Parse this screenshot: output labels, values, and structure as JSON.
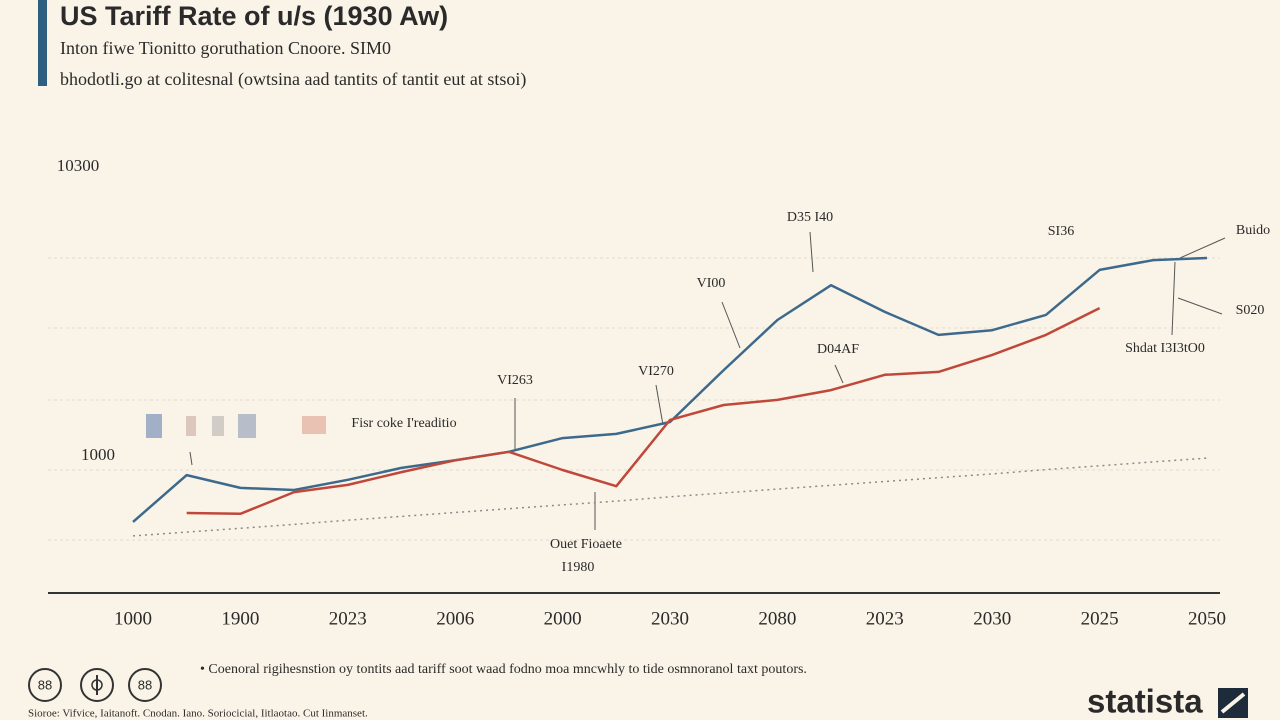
{
  "chart_data": {
    "type": "line",
    "title": "US Tariff Rate of u/s (1930 Aw)",
    "subtitle": [
      "Inton fiwe Tionitto goruthation Cnoore. SIM0",
      "bhodotli.go at colitesnal (owtsina aad tantits of tantit eut at stsoi)"
    ],
    "categories": [
      "1000",
      null,
      "1900",
      null,
      "2023",
      null,
      "2006",
      null,
      "2000",
      null,
      "2030",
      null,
      "2080",
      null,
      "2023",
      null,
      "2030",
      null,
      "2025",
      null,
      "2050"
    ],
    "series": [
      {
        "color": "#3d6a8c",
        "values": [
          16.5,
          27.5,
          24.5,
          24,
          26.4,
          29.2,
          31,
          33,
          36.2,
          37.2,
          40,
          52.2,
          64,
          72.2,
          65.9,
          60.5,
          61.6,
          65.2,
          75.8,
          78.1,
          78.6
        ]
      },
      {
        "color": "#c0483a",
        "values": [
          null,
          18.6,
          18.4,
          23.5,
          25.2,
          28.2,
          31,
          33,
          28.7,
          24.9,
          40.5,
          44,
          45.2,
          47.5,
          51.1,
          51.8,
          55.8,
          60.5,
          66.8,
          null,
          null
        ]
      }
    ],
    "trend": {
      "color": "#8a8a8a",
      "values": [
        13.2,
        14.1,
        15.0,
        15.9,
        16.9,
        17.8,
        18.7,
        19.6,
        20.5,
        21.4,
        22.4,
        23.3,
        24.2,
        25.1,
        26.0,
        26.9,
        27.8,
        28.8,
        29.7,
        30.6,
        31.5
      ]
    },
    "ylim": [
      0,
      100
    ],
    "annotations": [
      "10300",
      "1000",
      "VI263",
      "VI270",
      "VI00",
      "D35 I40",
      "SI36",
      "Buido",
      "S020",
      "Shdat I3I3tO0",
      "D04AF",
      "Fisr coke I'readitio",
      "Ouet Fioaete",
      "I1980"
    ],
    "footnote": "• Coenoral rigihesnstion oy tontits aad tariff soot waad fodno moa mncwhly to tide osmnoranol taxt poutors.",
    "source": "Sioroe: Vifvice, Iaitanoft. Cnodan. Iano. Soriocicial, Iitlaotao. Cut Iinmanset.",
    "icons": [
      "88",
      "88"
    ],
    "brand": "statista"
  }
}
